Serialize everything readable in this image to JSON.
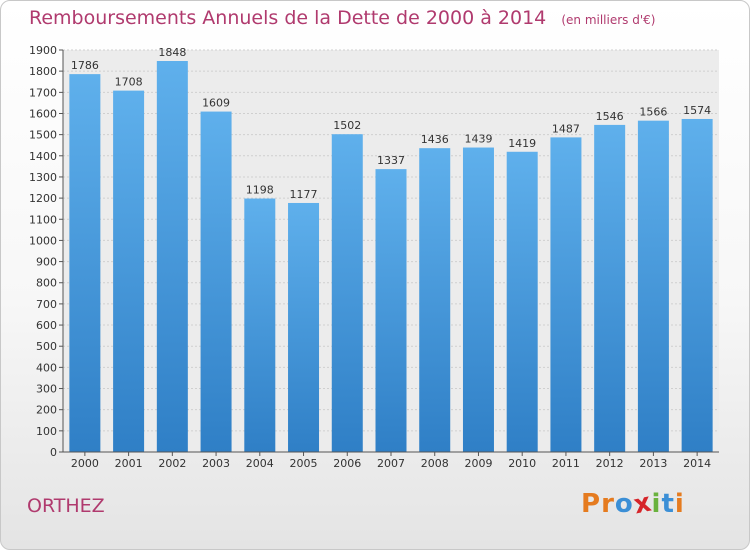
{
  "chart_data": {
    "type": "bar",
    "title": "Remboursements Annuels de la Dette de 2000 à 2014",
    "subtitle": "(en milliers d'€)",
    "categories": [
      "2000",
      "2001",
      "2002",
      "2003",
      "2004",
      "2005",
      "2006",
      "2007",
      "2008",
      "2009",
      "2010",
      "2011",
      "2012",
      "2013",
      "2014"
    ],
    "values": [
      1786,
      1708,
      1848,
      1609,
      1198,
      1177,
      1502,
      1337,
      1436,
      1439,
      1419,
      1487,
      1546,
      1566,
      1574
    ],
    "ylim": [
      0,
      1900
    ],
    "ytick_step": 100,
    "grid": true,
    "bar_color": "#4f9fe0",
    "xlabel": "",
    "ylabel": ""
  },
  "footer": {
    "city": "ORTHEZ",
    "logo_letters": [
      "P",
      "r",
      "o",
      "x",
      "i",
      "t",
      "i"
    ],
    "logo_colors": [
      "#e57b1f",
      "#e57b1f",
      "#3b8fd6",
      "#d6252a",
      "#6ab23e",
      "#3b8fd6",
      "#e57b1f"
    ]
  }
}
